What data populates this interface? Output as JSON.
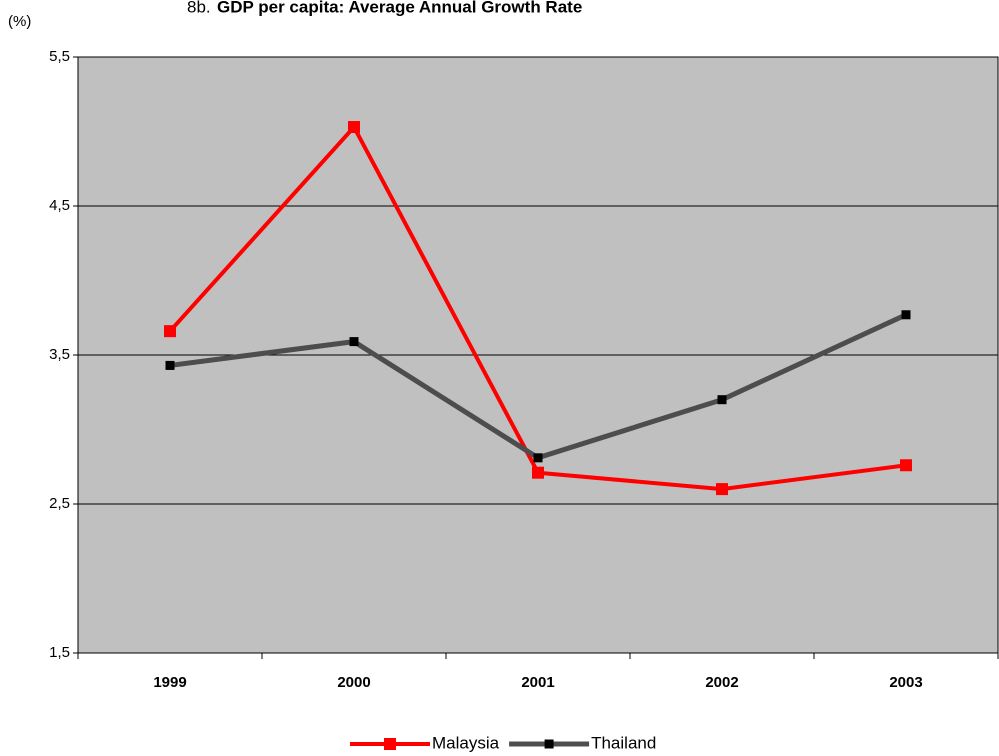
{
  "chart_data": {
    "type": "line",
    "title_number": "8b.",
    "title": "GDP per capita:  Average Annual Growth Rate",
    "y_label": "(%)",
    "categories": [
      "1999",
      "2000",
      "2001",
      "2002",
      "2003"
    ],
    "series": [
      {
        "name": "Malaysia",
        "color": "#ff0000",
        "values": [
          3.66,
          5.03,
          2.71,
          2.6,
          2.76
        ]
      },
      {
        "name": "Thailand",
        "color": "#4d4d4d",
        "values": [
          3.43,
          3.59,
          2.81,
          3.2,
          3.77
        ]
      }
    ],
    "ylim": [
      1.5,
      5.5
    ],
    "yticks": [
      {
        "value": 1.5,
        "label": "1,5"
      },
      {
        "value": 2.5,
        "label": "2,5"
      },
      {
        "value": 3.5,
        "label": "3,5"
      },
      {
        "value": 4.5,
        "label": "4,5"
      },
      {
        "value": 5.5,
        "label": "5,5"
      }
    ],
    "grid": true,
    "background": "#c0c0c0",
    "legend": "bottom"
  }
}
